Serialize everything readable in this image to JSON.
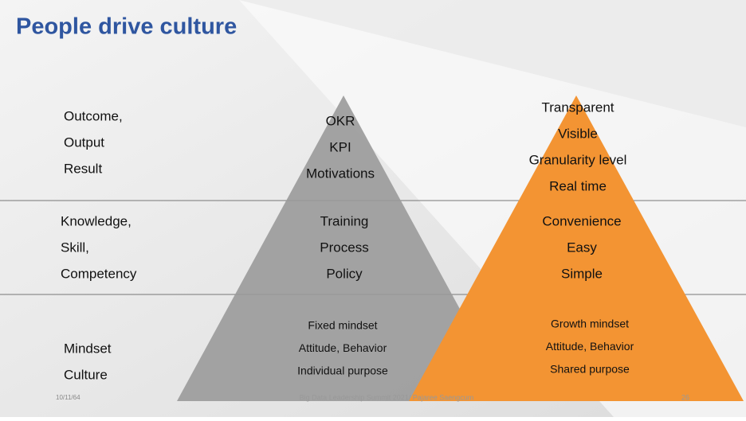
{
  "header": {
    "title": "People drive culture"
  },
  "rows": [
    {
      "labels": [
        "Outcome,",
        "Output",
        "Result"
      ],
      "gray": [
        "OKR",
        "KPI",
        "Motivations"
      ],
      "orange": [
        "Transparent",
        "Visible",
        "Granularity level",
        "Real time"
      ]
    },
    {
      "labels": [
        "Knowledge,",
        "Skill,",
        "Competency"
      ],
      "gray": [
        "Training",
        "Process",
        "Policy"
      ],
      "orange": [
        "Convenience",
        "Easy",
        "Simple"
      ]
    },
    {
      "labels": [
        "Mindset",
        "Culture"
      ],
      "gray": [
        "Fixed mindset",
        "Attitude, Behavior",
        "Individual purpose"
      ],
      "orange": [
        "Growth mindset",
        "Attitude, Behavior",
        "Shared purpose"
      ]
    }
  ],
  "footer": {
    "date": "10/11/64",
    "text": "Big Data Leadership Summit 2021/ Pajaree Saengcum",
    "page": "26"
  }
}
